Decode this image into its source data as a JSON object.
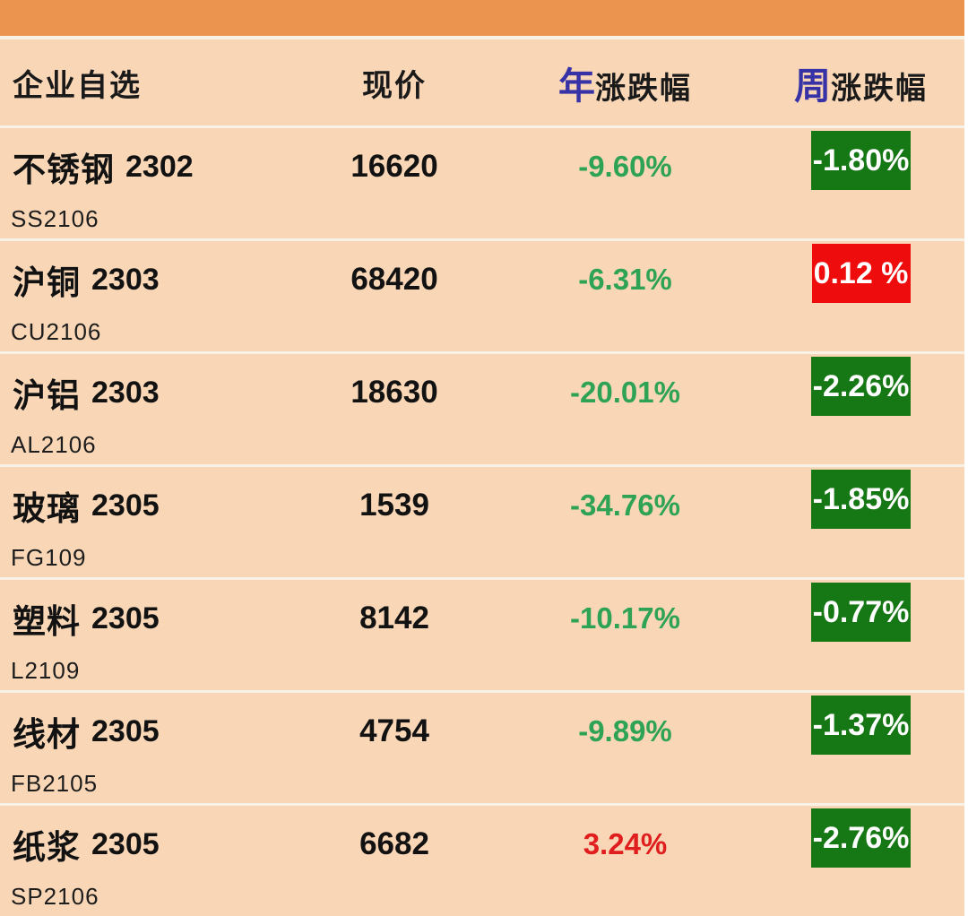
{
  "colors": {
    "top_bar": "#EB9450",
    "row_bg": "#F9D7B6",
    "separator": "#F8F1E5",
    "blue_accent": "#3733A6",
    "green_text": "#2FA355",
    "red_text": "#E01E1E",
    "green_badge": "#157815",
    "red_badge": "#EE0C0C",
    "badge_text": "#FFFFFF"
  },
  "header": {
    "watchlist": "企业自选",
    "price": "现价",
    "year_prefix": "年",
    "year_suffix": "涨跌幅",
    "week_prefix": "周",
    "week_suffix": "涨跌幅"
  },
  "rows": [
    {
      "name": "不锈钢",
      "contract": "2302",
      "code": "SS2106",
      "price": "16620",
      "year_change": "-9.60%",
      "year_color": "#2FA355",
      "week_change": "-1.80%",
      "week_bg": "#157815"
    },
    {
      "name": "沪铜",
      "contract": "2303",
      "code": "CU2106",
      "price": "68420",
      "year_change": "-6.31%",
      "year_color": "#2FA355",
      "week_change": "0.12 %",
      "week_bg": "#EE0C0C"
    },
    {
      "name": "沪铝",
      "contract": "2303",
      "code": "AL2106",
      "price": "18630",
      "year_change": "-20.01%",
      "year_color": "#2FA355",
      "week_change": "-2.26%",
      "week_bg": "#157815"
    },
    {
      "name": "玻璃",
      "contract": "2305",
      "code": "FG109",
      "price": "1539",
      "year_change": "-34.76%",
      "year_color": "#2FA355",
      "week_change": "-1.85%",
      "week_bg": "#157815"
    },
    {
      "name": "塑料",
      "contract": "2305",
      "code": "L2109",
      "price": "8142",
      "year_change": "-10.17%",
      "year_color": "#2FA355",
      "week_change": "-0.77%",
      "week_bg": "#157815"
    },
    {
      "name": "线材",
      "contract": "2305",
      "code": "FB2105",
      "price": "4754",
      "year_change": "-9.89%",
      "year_color": "#2FA355",
      "week_change": "-1.37%",
      "week_bg": "#157815"
    },
    {
      "name": "纸浆",
      "contract": "2305",
      "code": "SP2106",
      "price": "6682",
      "year_change": "3.24%",
      "year_color": "#E01E1E",
      "week_change": "-2.76%",
      "week_bg": "#157815"
    }
  ]
}
